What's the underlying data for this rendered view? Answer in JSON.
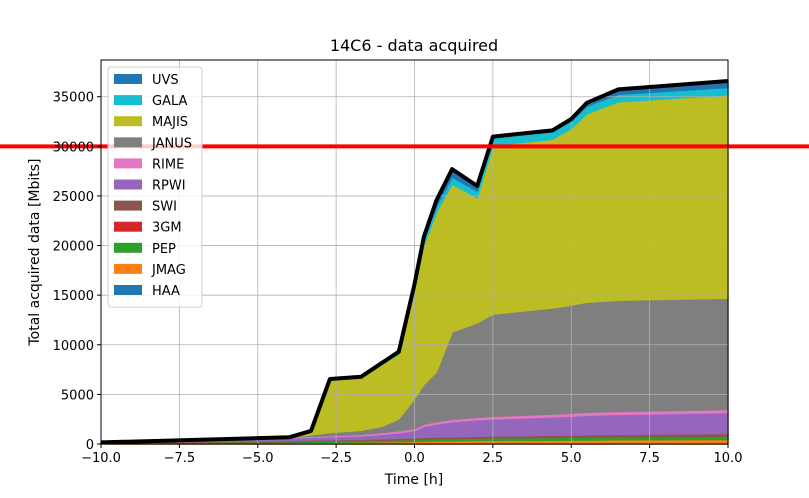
{
  "chart_data": {
    "type": "area",
    "title": "14C6 - data acquired",
    "xlabel": "Time [h]",
    "ylabel": "Total acquired data [Mbits]",
    "xlim": [
      -10,
      10
    ],
    "ylim": [
      0,
      38700
    ],
    "x_ticks": [
      -10,
      -7.5,
      -5,
      -2.5,
      0,
      2.5,
      5,
      7.5,
      10
    ],
    "x_tick_labels": [
      "−10.0",
      "−7.5",
      "−5.0",
      "−2.5",
      "0.0",
      "2.5",
      "5.0",
      "7.5",
      "10.0"
    ],
    "y_ticks": [
      0,
      5000,
      10000,
      15000,
      20000,
      25000,
      30000,
      35000
    ],
    "y_tick_labels": [
      "0",
      "5000",
      "10000",
      "15000",
      "20000",
      "25000",
      "30000",
      "35000"
    ],
    "grid": true,
    "legend_position": "upper left",
    "threshold_line": {
      "y": 30000,
      "color": "#ff0000"
    },
    "total_line_color": "#000000",
    "x": [
      -10,
      -4,
      -3.3,
      -2.7,
      -1.7,
      -1,
      -0.5,
      0,
      0.3,
      0.7,
      1.2,
      2,
      2.5,
      4.4,
      5,
      5.5,
      6.5,
      10
    ],
    "series": [
      {
        "name": "HAA",
        "color": "#1f77b4",
        "values": [
          0,
          0,
          0,
          0,
          0,
          0,
          0,
          0,
          0,
          0,
          0,
          0,
          0,
          0,
          0,
          0,
          0,
          0
        ]
      },
      {
        "name": "JMAG",
        "color": "#ff7f0e",
        "values": [
          100,
          150,
          170,
          180,
          200,
          220,
          240,
          260,
          280,
          300,
          320,
          340,
          350,
          380,
          390,
          400,
          420,
          450
        ]
      },
      {
        "name": "PEP",
        "color": "#2ca02c",
        "values": [
          50,
          100,
          120,
          130,
          150,
          170,
          190,
          210,
          220,
          230,
          240,
          250,
          260,
          280,
          290,
          300,
          310,
          330
        ]
      },
      {
        "name": "3GM",
        "color": "#d62728",
        "values": [
          0,
          0,
          0,
          0,
          0,
          0,
          0,
          0,
          0,
          0,
          0,
          0,
          0,
          0,
          0,
          0,
          0,
          0
        ]
      },
      {
        "name": "SWI",
        "color": "#8c564b",
        "values": [
          0,
          100,
          110,
          120,
          130,
          140,
          150,
          160,
          170,
          180,
          190,
          200,
          210,
          220,
          230,
          240,
          250,
          280
        ]
      },
      {
        "name": "RPWI",
        "color": "#9467bd",
        "values": [
          10,
          250,
          270,
          300,
          350,
          450,
          550,
          700,
          1100,
          1300,
          1500,
          1650,
          1700,
          1850,
          1900,
          1950,
          2000,
          2100
        ]
      },
      {
        "name": "RIME",
        "color": "#e377c2",
        "values": [
          0,
          80,
          100,
          120,
          150,
          180,
          200,
          220,
          230,
          240,
          250,
          260,
          270,
          280,
          290,
          300,
          310,
          320
        ]
      },
      {
        "name": "JANUS",
        "color": "#7f7f7f",
        "values": [
          0,
          0,
          150,
          300,
          400,
          650,
          1200,
          3000,
          4000,
          5000,
          8800,
          9500,
          10300,
          10700,
          10900,
          11100,
          11200,
          11200
        ]
      },
      {
        "name": "MAJIS",
        "color": "#bcbd22",
        "values": [
          0,
          0,
          400,
          5400,
          5400,
          6300,
          6500,
          11000,
          14000,
          16100,
          14900,
          12600,
          17000,
          17000,
          17800,
          19000,
          20000,
          20500
        ]
      },
      {
        "name": "GALA",
        "color": "#17becf",
        "values": [
          0,
          0,
          0,
          0,
          0,
          50,
          100,
          300,
          500,
          600,
          700,
          700,
          750,
          750,
          750,
          750,
          750,
          750
        ]
      },
      {
        "name": "UVS",
        "color": "#1f77b4",
        "values": [
          0,
          0,
          0,
          0,
          0,
          100,
          170,
          250,
          400,
          600,
          800,
          500,
          140,
          140,
          200,
          350,
          500,
          650
        ]
      }
    ]
  }
}
